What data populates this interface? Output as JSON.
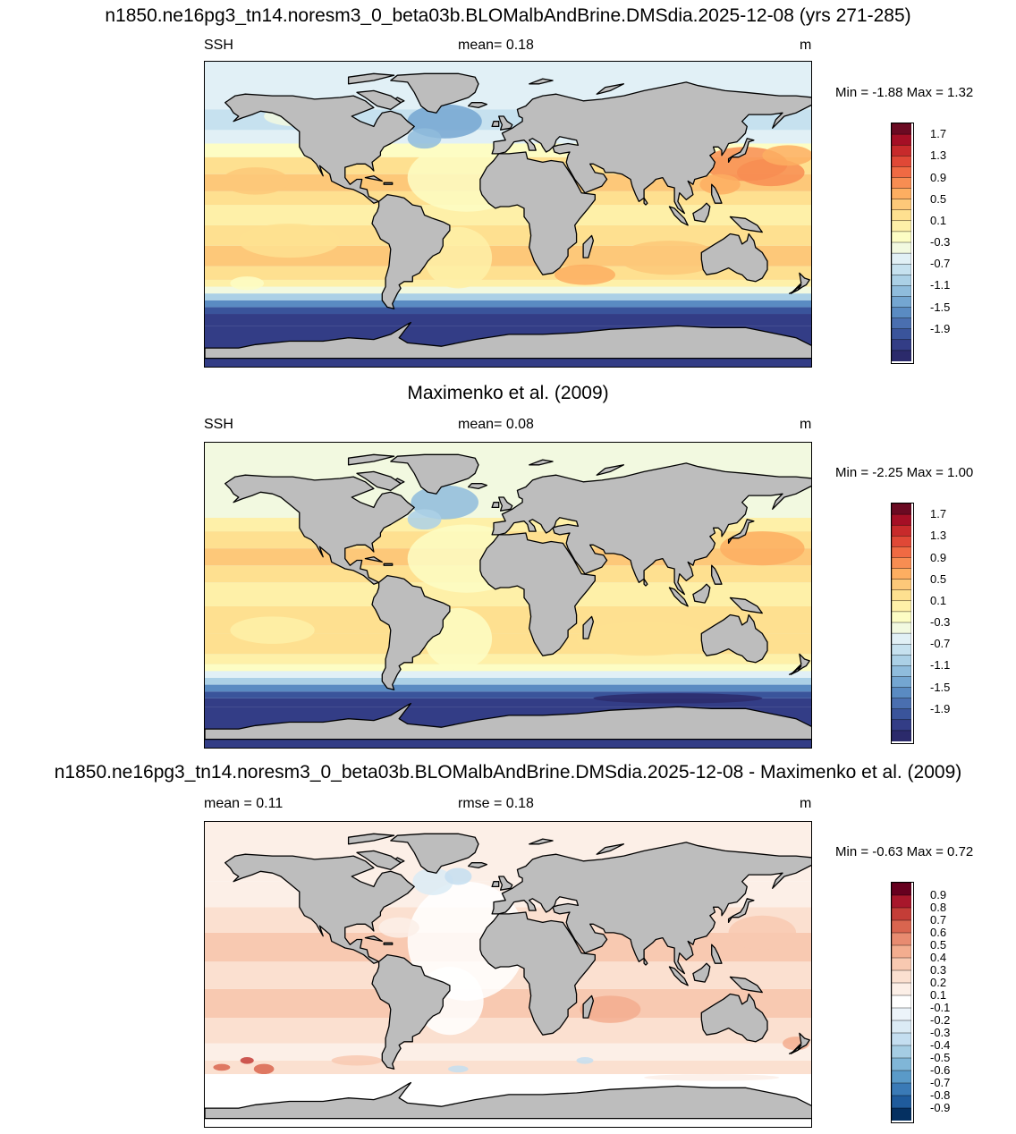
{
  "main_title": "n1850.ne16pg3_tn14.noresm3_0_beta03b.BLOMalbAndBrine.DMSdia.2025-12-08 (yrs 271-285)",
  "panels": [
    {
      "variable": "SSH",
      "stat1": "mean=   0.18",
      "unit": "m",
      "minmax": "Min =  -1.88 Max =   1.32",
      "palette": "ssh",
      "colorbar_labels": [
        "1.7",
        "1.3",
        "0.9",
        "0.5",
        "0.1",
        "-0.3",
        "-0.7",
        "-1.1",
        "-1.5",
        "-1.9"
      ]
    },
    {
      "title": "Maximenko et al. (2009)",
      "variable": "SSH",
      "stat1": "mean=   0.08",
      "unit": "m",
      "minmax": "Min =  -2.25 Max =   1.00",
      "palette": "ssh",
      "colorbar_labels": [
        "1.7",
        "1.3",
        "0.9",
        "0.5",
        "0.1",
        "-0.3",
        "-0.7",
        "-1.1",
        "-1.5",
        "-1.9"
      ]
    },
    {
      "title": "n1850.ne16pg3_tn14.noresm3_0_beta03b.BLOMalbAndBrine.DMSdia.2025-12-08 - Maximenko et al. (2009)",
      "stat0": "mean =   0.11",
      "stat1": "rmse =   0.18",
      "unit": "m",
      "minmax": "Min =  -0.63 Max =   0.72",
      "palette": "diff",
      "colorbar_labels": [
        "0.9",
        "0.8",
        "0.7",
        "0.6",
        "0.5",
        "0.4",
        "0.3",
        "0.2",
        "0.1",
        "-0.1",
        "-0.2",
        "-0.3",
        "-0.4",
        "-0.5",
        "-0.6",
        "-0.7",
        "-0.8",
        "-0.9"
      ]
    }
  ],
  "colors": {
    "land": "#bdbdbd",
    "ssh_palette": [
      "#f0f4fb",
      "#2b2a6b",
      "#333d86",
      "#3a549b",
      "#4a6fb0",
      "#5a8bc2",
      "#74a6d1",
      "#8fbcdc",
      "#abd0e6",
      "#c6e1ef",
      "#e1f0f6",
      "#f2f9e0",
      "#fdfdc4",
      "#fef0a8",
      "#fee090",
      "#fdc879",
      "#fdae61",
      "#f88d52",
      "#f06a43",
      "#e04836",
      "#c72a2b",
      "#a50f25",
      "#6b0a22"
    ],
    "diff_palette": [
      "#053061",
      "#1f5b9c",
      "#3a7ab6",
      "#5a9ac8",
      "#80b6d7",
      "#a5cde3",
      "#c4def0",
      "#dbebf5",
      "#ecf4fa",
      "#ffffff",
      "#fcefe7",
      "#fbe0d0",
      "#f8c9b1",
      "#f3ad8f",
      "#e88b70",
      "#d9654f",
      "#c43d37",
      "#a8172b",
      "#67001f"
    ]
  }
}
